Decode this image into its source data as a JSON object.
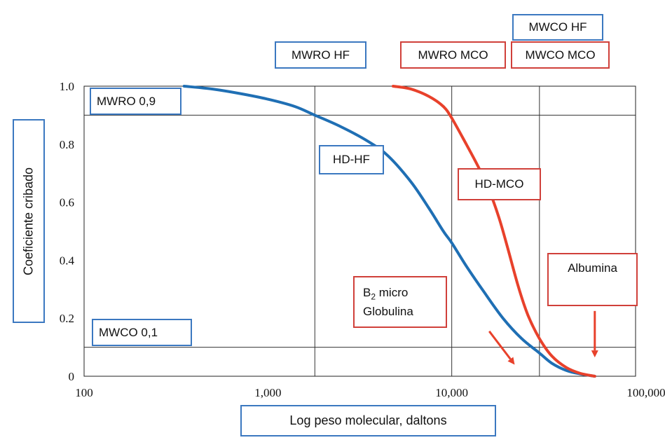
{
  "chart_data": {
    "type": "line",
    "xscale": "log",
    "xlim": [
      100,
      100000
    ],
    "ylim": [
      0,
      1.0
    ],
    "xlabel": "Log peso molecular, daltons",
    "ylabel": "Coeficiente cribado",
    "x_ticks": [
      100,
      1000,
      10000,
      100000
    ],
    "x_tick_labels": [
      "100",
      "1,000",
      "10,000",
      "100,000"
    ],
    "y_ticks": [
      0,
      0.2,
      0.4,
      0.6,
      0.8,
      1.0
    ],
    "y_tick_labels": [
      "0",
      "0.2",
      "0.4",
      "0.6",
      "0.8",
      "1.0"
    ],
    "grid": false,
    "series": [
      {
        "name": "HD-HF",
        "color": "#1f6fb4",
        "x": [
          350,
          500,
          700,
          1000,
          1400,
          1800,
          2500,
          3500,
          4500,
          6000,
          7500,
          9000,
          10000,
          12000,
          15000,
          19000,
          24000,
          30000,
          35000,
          42000,
          50000,
          60000
        ],
        "y": [
          1.0,
          0.99,
          0.975,
          0.955,
          0.93,
          0.9,
          0.86,
          0.81,
          0.76,
          0.67,
          0.58,
          0.5,
          0.46,
          0.38,
          0.29,
          0.2,
          0.13,
          0.08,
          0.045,
          0.02,
          0.008,
          0.0
        ]
      },
      {
        "name": "HD-MCO",
        "color": "#e8412b",
        "x": [
          4800,
          6000,
          7500,
          9000,
          10000,
          12000,
          14000,
          16000,
          18000,
          20000,
          23000,
          26000,
          30000,
          35000,
          42000,
          50000,
          60000
        ],
        "y": [
          1.0,
          0.99,
          0.965,
          0.93,
          0.89,
          0.8,
          0.72,
          0.64,
          0.55,
          0.45,
          0.31,
          0.21,
          0.13,
          0.07,
          0.03,
          0.01,
          0.0
        ]
      }
    ],
    "reference_lines": {
      "vertical_x": [
        1800,
        10000,
        30000
      ],
      "horizontal_y": [
        0.9,
        0.1
      ]
    },
    "arrows": [
      {
        "from": [
          16000,
          0.155
        ],
        "to": [
          22000,
          0.04
        ],
        "color": "#e8412b"
      },
      {
        "from": [
          60000,
          0.225
        ],
        "to": [
          60000,
          0.065
        ],
        "color": "#e8412b"
      }
    ]
  },
  "labels": {
    "mwro_hf": "MWRO  HF",
    "mwro_mco": "MWRO  MCO",
    "mwco_hf": "MWCO HF",
    "mwco_mco": "MWCO MCO",
    "mwro_09": "MWRO 0,9",
    "mwco_01": "MWCO 0,1",
    "hd_hf": "HD-HF",
    "hd_mco": "HD-MCO",
    "albumina": "Albumina",
    "b2_prefix": "B",
    "b2_sub": "2",
    "b2_suffix": " micro",
    "globulina": "Globulina"
  }
}
